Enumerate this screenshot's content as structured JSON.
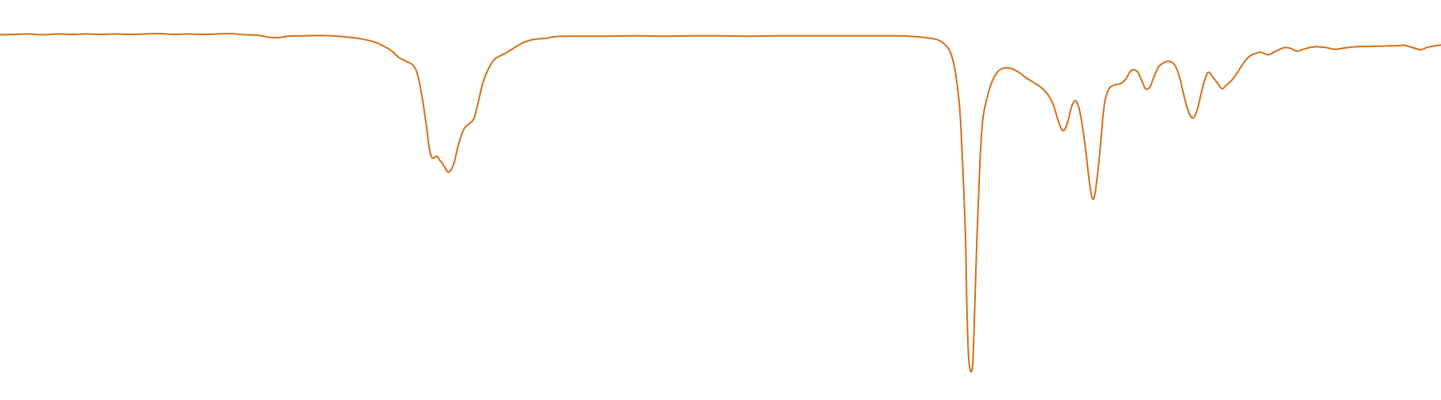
{
  "chart_data": {
    "type": "line",
    "title": "",
    "xlabel": "",
    "ylabel": "",
    "x_range": [
      0,
      100
    ],
    "y_range": [
      0,
      100
    ],
    "grid": false,
    "legend": "none",
    "series": [
      {
        "color": "#d4701a",
        "points": [
          [
            0.0,
            95.3
          ],
          [
            1.0,
            95.4
          ],
          [
            2.0,
            95.5
          ],
          [
            3.0,
            95.3
          ],
          [
            4.0,
            95.5
          ],
          [
            5.0,
            95.4
          ],
          [
            6.0,
            95.5
          ],
          [
            7.0,
            95.4
          ],
          [
            8.0,
            95.5
          ],
          [
            9.0,
            95.4
          ],
          [
            10.0,
            95.5
          ],
          [
            11.0,
            95.6
          ],
          [
            12.0,
            95.4
          ],
          [
            13.0,
            95.5
          ],
          [
            14.0,
            95.4
          ],
          [
            15.0,
            95.5
          ],
          [
            16.0,
            95.6
          ],
          [
            17.0,
            95.3
          ],
          [
            18.0,
            95.1
          ],
          [
            18.7,
            94.6
          ],
          [
            19.3,
            94.5
          ],
          [
            20.0,
            94.9
          ],
          [
            21.0,
            95.0
          ],
          [
            22.0,
            95.1
          ],
          [
            23.0,
            95.0
          ],
          [
            24.0,
            94.7
          ],
          [
            25.0,
            94.2
          ],
          [
            26.0,
            93.3
          ],
          [
            26.7,
            92.0
          ],
          [
            27.2,
            90.8
          ],
          [
            27.7,
            89.0
          ],
          [
            28.2,
            88.0
          ],
          [
            28.7,
            86.8
          ],
          [
            29.0,
            84.0
          ],
          [
            29.3,
            78.0
          ],
          [
            29.6,
            70.0
          ],
          [
            29.8,
            64.0
          ],
          [
            30.0,
            61.5
          ],
          [
            30.3,
            62.0
          ],
          [
            30.5,
            61.0
          ],
          [
            30.8,
            59.5
          ],
          [
            31.0,
            58.0
          ],
          [
            31.2,
            57.8
          ],
          [
            31.5,
            60.0
          ],
          [
            31.8,
            65.0
          ],
          [
            32.2,
            69.5
          ],
          [
            32.6,
            71.0
          ],
          [
            32.9,
            72.5
          ],
          [
            33.2,
            77.0
          ],
          [
            33.5,
            82.0
          ],
          [
            33.9,
            86.0
          ],
          [
            34.3,
            88.5
          ],
          [
            34.7,
            89.5
          ],
          [
            35.2,
            90.5
          ],
          [
            35.8,
            92.0
          ],
          [
            36.4,
            93.3
          ],
          [
            37.0,
            94.0
          ],
          [
            37.8,
            94.3
          ],
          [
            38.6,
            94.8
          ],
          [
            40.0,
            94.9
          ],
          [
            42.0,
            94.9
          ],
          [
            44.0,
            95.0
          ],
          [
            46.0,
            94.9
          ],
          [
            48.0,
            95.0
          ],
          [
            50.0,
            95.0
          ],
          [
            52.0,
            94.9
          ],
          [
            54.0,
            95.0
          ],
          [
            56.0,
            95.0
          ],
          [
            58.0,
            95.0
          ],
          [
            60.0,
            95.0
          ],
          [
            62.0,
            95.0
          ],
          [
            63.0,
            94.9
          ],
          [
            64.0,
            94.6
          ],
          [
            65.0,
            94.0
          ],
          [
            65.6,
            92.5
          ],
          [
            66.0,
            90.0
          ],
          [
            66.3,
            85.0
          ],
          [
            66.6,
            75.0
          ],
          [
            66.8,
            60.0
          ],
          [
            67.0,
            40.0
          ],
          [
            67.1,
            20.0
          ],
          [
            67.2,
            8.0
          ],
          [
            67.3,
            4.0
          ],
          [
            67.4,
            3.0
          ],
          [
            67.5,
            5.0
          ],
          [
            67.6,
            15.0
          ],
          [
            67.8,
            40.0
          ],
          [
            68.0,
            60.0
          ],
          [
            68.2,
            72.0
          ],
          [
            68.5,
            78.0
          ],
          [
            68.8,
            82.0
          ],
          [
            69.2,
            85.0
          ],
          [
            69.7,
            86.2
          ],
          [
            70.2,
            86.0
          ],
          [
            70.7,
            85.0
          ],
          [
            71.2,
            83.5
          ],
          [
            71.7,
            82.3
          ],
          [
            72.2,
            81.0
          ],
          [
            72.7,
            79.0
          ],
          [
            73.1,
            76.0
          ],
          [
            73.5,
            71.0
          ],
          [
            73.8,
            69.0
          ],
          [
            74.1,
            71.5
          ],
          [
            74.4,
            76.0
          ],
          [
            74.7,
            77.0
          ],
          [
            75.0,
            73.0
          ],
          [
            75.3,
            65.0
          ],
          [
            75.6,
            55.0
          ],
          [
            75.8,
            50.5
          ],
          [
            76.0,
            52.0
          ],
          [
            76.3,
            62.0
          ],
          [
            76.6,
            75.0
          ],
          [
            76.9,
            80.0
          ],
          [
            77.3,
            81.5
          ],
          [
            77.7,
            81.8
          ],
          [
            78.1,
            83.0
          ],
          [
            78.5,
            85.5
          ],
          [
            78.9,
            85.3
          ],
          [
            79.2,
            83.0
          ],
          [
            79.5,
            80.5
          ],
          [
            79.8,
            81.0
          ],
          [
            80.1,
            84.0
          ],
          [
            80.4,
            86.5
          ],
          [
            80.7,
            87.5
          ],
          [
            81.0,
            88.0
          ],
          [
            81.3,
            87.8
          ],
          [
            81.6,
            86.5
          ],
          [
            81.9,
            83.0
          ],
          [
            82.2,
            78.0
          ],
          [
            82.5,
            74.0
          ],
          [
            82.8,
            72.5
          ],
          [
            83.1,
            75.0
          ],
          [
            83.4,
            80.0
          ],
          [
            83.7,
            84.0
          ],
          [
            83.9,
            85.0
          ],
          [
            84.2,
            83.5
          ],
          [
            84.5,
            82.0
          ],
          [
            84.8,
            80.5
          ],
          [
            85.1,
            81.5
          ],
          [
            85.4,
            82.5
          ],
          [
            85.8,
            84.5
          ],
          [
            86.2,
            87.0
          ],
          [
            86.6,
            89.0
          ],
          [
            87.0,
            90.0
          ],
          [
            87.5,
            90.5
          ],
          [
            88.0,
            89.8
          ],
          [
            88.4,
            90.5
          ],
          [
            88.8,
            91.3
          ],
          [
            89.2,
            91.8
          ],
          [
            89.6,
            91.5
          ],
          [
            90.0,
            90.8
          ],
          [
            90.6,
            91.5
          ],
          [
            91.2,
            92.0
          ],
          [
            92.0,
            91.8
          ],
          [
            92.6,
            91.3
          ],
          [
            93.2,
            91.6
          ],
          [
            94.0,
            92.0
          ],
          [
            95.0,
            92.1
          ],
          [
            96.0,
            92.2
          ],
          [
            97.0,
            92.3
          ],
          [
            97.5,
            92.4
          ],
          [
            98.0,
            91.8
          ],
          [
            98.6,
            91.2
          ],
          [
            99.0,
            91.8
          ],
          [
            99.5,
            92.2
          ],
          [
            100.0,
            92.5
          ]
        ]
      }
    ]
  }
}
